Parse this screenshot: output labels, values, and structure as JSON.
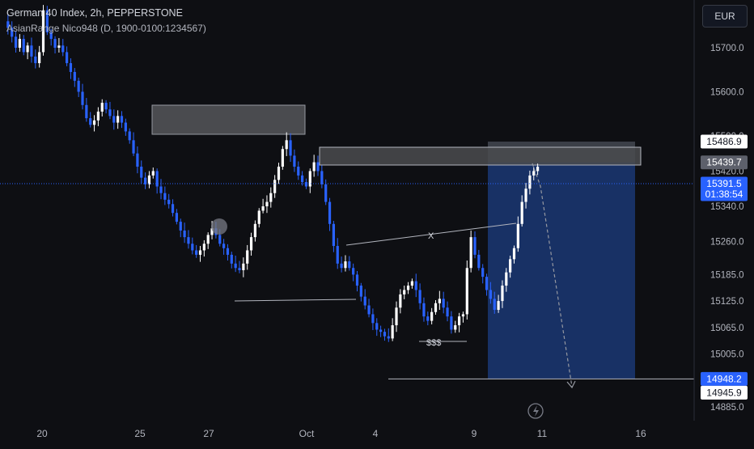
{
  "header": {
    "symbol_line": "German 40 Index, 2h, PEPPERSTONE",
    "indicator_line": "AsianRange Nico948 (D, 1900-0100:1234567)"
  },
  "currency_button": "EUR",
  "chart_data": {
    "type": "candlestick",
    "title": "German 40 Index, 2h, PEPPERSTONE",
    "price_axis": {
      "range": [
        14855,
        15805
      ],
      "ticks": [
        "15700.0",
        "15600.0",
        "15500.0",
        "15420.0",
        "15340.0",
        "15260.0",
        "15185.0",
        "15125.0",
        "15065.0",
        "15005.0",
        "14885.0"
      ],
      "tick_values": [
        15700,
        15600,
        15500,
        15420,
        15340,
        15260,
        15185,
        15125,
        15065,
        15005,
        14885
      ]
    },
    "time_axis": {
      "labels": [
        "20",
        "25",
        "27",
        "Oct",
        "4",
        "9",
        "11",
        "16"
      ]
    },
    "price_labels": [
      {
        "text": "15486.9",
        "value": 15486.9,
        "style": "white"
      },
      {
        "text": "15439.7",
        "value": 15439.7,
        "style": "grey"
      },
      {
        "text": "15391.5",
        "sub": "01:38:54",
        "value": 15391.5,
        "style": "blue"
      },
      {
        "text": "14948.2",
        "value": 14948.2,
        "style": "blue"
      },
      {
        "text": "14945.9",
        "value": 14945.9,
        "style": "white"
      }
    ],
    "annotations": {
      "x_mark": "X",
      "liquidity": "$$$"
    },
    "colors": {
      "up": "#ffffff",
      "down": "#2962ff",
      "background": "#0e0f13",
      "short_zone": "#1c3a7a",
      "zone_box": "#4a4b4f"
    },
    "approx_closes": [
      15760,
      15745,
      15725,
      15700,
      15720,
      15690,
      15705,
      15680,
      15665,
      15690,
      15785,
      15735,
      15720,
      15700,
      15705,
      15690,
      15665,
      15645,
      15625,
      15600,
      15570,
      15540,
      15525,
      15535,
      15555,
      15575,
      15560,
      15545,
      15530,
      15545,
      15530,
      15510,
      15490,
      15460,
      15430,
      15405,
      15390,
      15410,
      15420,
      15385,
      15370,
      15355,
      15345,
      15325,
      15305,
      15285,
      15270,
      15255,
      15240,
      15230,
      15240,
      15255,
      15275,
      15290,
      15275,
      15255,
      15245,
      15230,
      15210,
      15200,
      15195,
      15210,
      15240,
      15270,
      15300,
      15330,
      15340,
      15350,
      15370,
      15400,
      15430,
      15470,
      15490,
      15455,
      15430,
      15410,
      15395,
      15385,
      15420,
      15440,
      15420,
      15390,
      15350,
      15300,
      15250,
      15210,
      15200,
      15215,
      15200,
      15185,
      15160,
      15135,
      15115,
      15095,
      15075,
      15060,
      15055,
      15045,
      15040,
      15070,
      15110,
      15140,
      15150,
      15160,
      15170,
      15150,
      15120,
      15090,
      15080,
      15100,
      15120,
      15130,
      15110,
      15090,
      15060,
      15070,
      15090,
      15095,
      15200,
      15270,
      15230,
      15200,
      15180,
      15150,
      15130,
      15105,
      15125,
      15160,
      15190,
      15220,
      15245,
      15300,
      15350,
      15380,
      15410,
      15420,
      15430
    ]
  }
}
